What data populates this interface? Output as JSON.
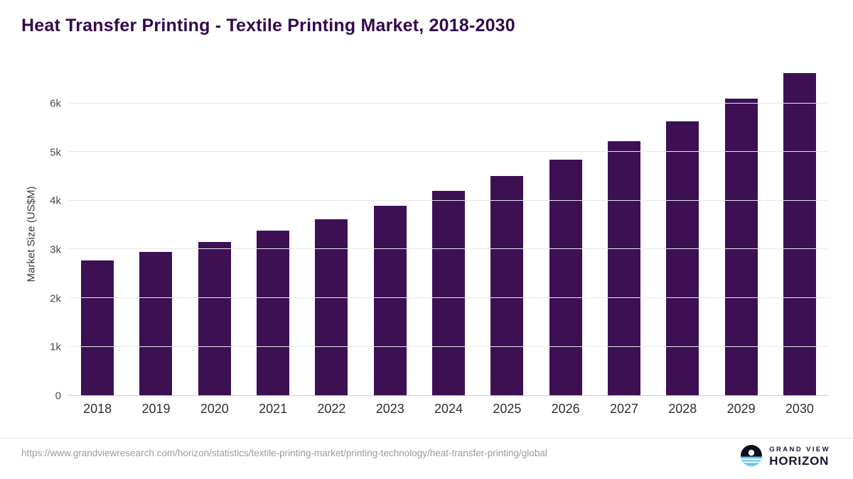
{
  "title": "Heat Transfer Printing - Textile Printing Market, 2018-2030",
  "chart_data": {
    "type": "bar",
    "title": "Heat Transfer Printing - Textile Printing Market, 2018-2030",
    "categories": [
      "2018",
      "2019",
      "2020",
      "2021",
      "2022",
      "2023",
      "2024",
      "2025",
      "2026",
      "2027",
      "2028",
      "2029",
      "2030"
    ],
    "values": [
      2780,
      2950,
      3150,
      3390,
      3620,
      3900,
      4200,
      4510,
      4850,
      5220,
      5640,
      6100,
      6620
    ],
    "xlabel": "",
    "ylabel": "Market Size (US$M)",
    "ylim": [
      0,
      6700
    ],
    "ytick_values": [
      0,
      1000,
      2000,
      3000,
      4000,
      5000,
      6000
    ],
    "ytick_labels": [
      "0",
      "1k",
      "2k",
      "3k",
      "4k",
      "5k",
      "6k"
    ],
    "grid": true,
    "legend": "none",
    "bar_color": "#3d1054"
  },
  "colors": {
    "title": "#33094e",
    "bar": "#3d1054",
    "gridline": "#e7e7e7",
    "axis_line": "#cfcfcf",
    "source_text": "#9b9b9b"
  },
  "footer": {
    "source_url": "https://www.grandviewresearch.com/horizon/statistics/textile-printing-market/printing-technology/heat-transfer-printing/global",
    "logo": {
      "line1": "GRAND VIEW",
      "line2": "HORIZON"
    }
  }
}
